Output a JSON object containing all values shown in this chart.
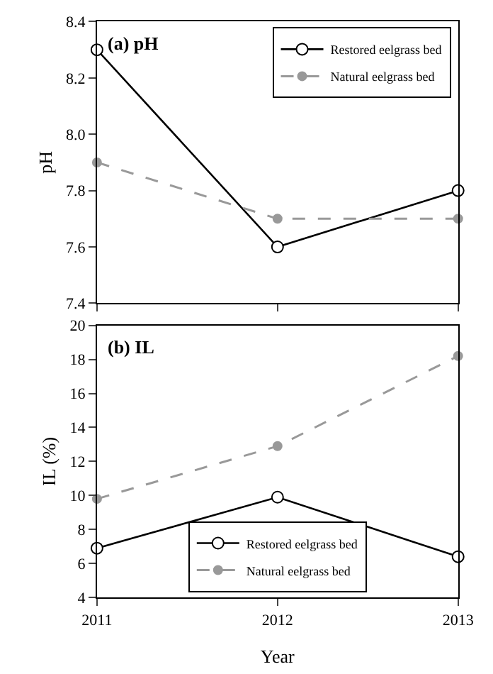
{
  "chart_data": [
    {
      "type": "line",
      "title": "(a) pH",
      "ylabel": "pH",
      "x": [
        2011,
        2012,
        2013
      ],
      "xlim": [
        2011,
        2013
      ],
      "xticks": [
        2011,
        2012,
        2013
      ],
      "ylim": [
        7.4,
        8.4
      ],
      "yticks": [
        7.4,
        7.6,
        7.8,
        {
          "value": 8.0,
          "label": "8.0"
        },
        8.2,
        8.4
      ],
      "tick_labels": "y",
      "legend": "top right",
      "series": [
        {
          "name": "Restored eelgrass bed",
          "color": "#000000",
          "values": [
            8.3,
            7.6,
            7.8
          ],
          "marker": "circle",
          "line_style": "solid"
        },
        {
          "name": "Natural eelgrass bed",
          "color": "#999999",
          "values": [
            7.9,
            7.7,
            7.7
          ],
          "marker": "circle",
          "line_style": "dashed"
        }
      ]
    },
    {
      "type": "line",
      "title": "(b) IL",
      "ylabel": "IL (%)",
      "xlabel": "Year",
      "x": [
        2011,
        2012,
        2013
      ],
      "xlim": [
        2011,
        2013
      ],
      "xticks": [
        2011,
        2012,
        2013
      ],
      "ylim": [
        4,
        20
      ],
      "yticks": [
        4,
        6,
        8,
        10,
        12,
        14,
        16,
        18,
        20
      ],
      "legend": "bottom",
      "series": [
        {
          "name": "Restored eelgrass bed",
          "color": "#000000",
          "values": [
            6.9,
            9.9,
            6.4
          ],
          "marker": "circle",
          "line_style": "solid"
        },
        {
          "name": "Natural eelgrass bed",
          "color": "#999999",
          "values": [
            9.8,
            12.9,
            18.2
          ],
          "marker": "circle",
          "line_style": "dashed"
        }
      ]
    }
  ]
}
